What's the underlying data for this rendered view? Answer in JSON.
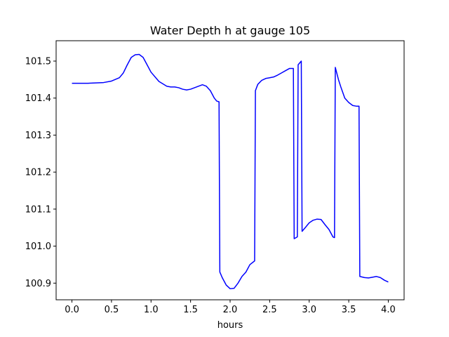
{
  "chart_data": {
    "type": "line",
    "title": "Water Depth h at gauge 105",
    "xlabel": "hours",
    "ylabel": "",
    "xlim": [
      -0.2,
      4.2
    ],
    "ylim": [
      100.855,
      101.555
    ],
    "xticks": [
      0.0,
      0.5,
      1.0,
      1.5,
      2.0,
      2.5,
      3.0,
      3.5,
      4.0
    ],
    "xtick_labels": [
      "0.0",
      "0.5",
      "1.0",
      "1.5",
      "2.0",
      "2.5",
      "3.0",
      "3.5",
      "4.0"
    ],
    "yticks": [
      100.9,
      101.0,
      101.1,
      101.2,
      101.3,
      101.4,
      101.5
    ],
    "ytick_labels": [
      "100.9",
      "101.0",
      "101.1",
      "101.2",
      "101.3",
      "101.4",
      "101.5"
    ],
    "grid": false,
    "series": [
      {
        "color": "#0000ff",
        "x": [
          0.0,
          0.2,
          0.4,
          0.5,
          0.6,
          0.65,
          0.7,
          0.75,
          0.8,
          0.85,
          0.9,
          0.95,
          1.0,
          1.1,
          1.2,
          1.25,
          1.3,
          1.35,
          1.4,
          1.45,
          1.5,
          1.55,
          1.6,
          1.65,
          1.7,
          1.75,
          1.8,
          1.83,
          1.86,
          1.87,
          1.9,
          1.95,
          2.0,
          2.05,
          2.1,
          2.15,
          2.2,
          2.25,
          2.31,
          2.32,
          2.35,
          2.4,
          2.45,
          2.5,
          2.55,
          2.6,
          2.65,
          2.7,
          2.75,
          2.8,
          2.81,
          2.85,
          2.86,
          2.9,
          2.91,
          2.95,
          3.0,
          3.05,
          3.1,
          3.15,
          3.2,
          3.25,
          3.3,
          3.32,
          3.33,
          3.37,
          3.4,
          3.45,
          3.5,
          3.55,
          3.6,
          3.63,
          3.64,
          3.7,
          3.75,
          3.8,
          3.85,
          3.9,
          3.95,
          4.0
        ],
        "y": [
          101.44,
          101.44,
          101.442,
          101.446,
          101.455,
          101.468,
          101.49,
          101.51,
          101.517,
          101.518,
          101.51,
          101.49,
          101.47,
          101.445,
          101.432,
          101.43,
          101.43,
          101.428,
          101.424,
          101.422,
          101.424,
          101.428,
          101.432,
          101.436,
          101.432,
          101.42,
          101.4,
          101.392,
          101.39,
          100.93,
          100.915,
          100.895,
          100.885,
          100.886,
          100.9,
          100.918,
          100.93,
          100.95,
          100.96,
          101.42,
          101.437,
          101.448,
          101.453,
          101.455,
          101.457,
          101.462,
          101.468,
          101.474,
          101.48,
          101.48,
          101.02,
          101.025,
          101.49,
          101.5,
          101.04,
          101.05,
          101.063,
          101.07,
          101.073,
          101.072,
          101.058,
          101.045,
          101.025,
          101.023,
          101.483,
          101.45,
          101.43,
          101.4,
          101.388,
          101.38,
          101.378,
          101.378,
          100.918,
          100.915,
          100.914,
          100.916,
          100.918,
          100.915,
          100.908,
          100.903
        ]
      }
    ]
  }
}
